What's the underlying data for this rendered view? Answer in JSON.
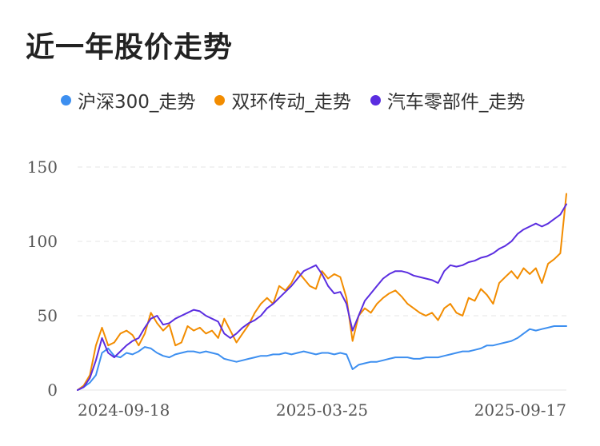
{
  "header": {
    "title": "近一年股价走势"
  },
  "legend": [
    {
      "label": "沪深300_走势",
      "color": "#3d8ff0"
    },
    {
      "label": "双环传动_走势",
      "color": "#f28c00"
    },
    {
      "label": "汽车零部件_走势",
      "color": "#5a2de0"
    }
  ],
  "chart_data": {
    "type": "line",
    "title": "近一年股价走势",
    "xlabel": "",
    "ylabel": "",
    "ylim": [
      0,
      150
    ],
    "y_ticks": [
      "0",
      "50",
      "100",
      "150"
    ],
    "x_tick_labels": [
      "2024-09-18",
      "2025-03-25",
      "2025-09-17"
    ],
    "grid": "horizontal dashed",
    "legend_position": "top",
    "series": [
      {
        "name": "沪深300_走势",
        "color": "#3d8ff0",
        "points": [
          [
            0,
            0
          ],
          [
            1,
            2
          ],
          [
            2,
            5
          ],
          [
            3,
            10
          ],
          [
            4,
            25
          ],
          [
            5,
            28
          ],
          [
            6,
            23
          ],
          [
            7,
            22
          ],
          [
            8,
            25
          ],
          [
            9,
            24
          ],
          [
            10,
            26
          ],
          [
            11,
            29
          ],
          [
            12,
            28
          ],
          [
            13,
            25
          ],
          [
            14,
            23
          ],
          [
            15,
            22
          ],
          [
            16,
            24
          ],
          [
            17,
            25
          ],
          [
            18,
            26
          ],
          [
            19,
            26
          ],
          [
            20,
            25
          ],
          [
            21,
            26
          ],
          [
            22,
            25
          ],
          [
            23,
            24
          ],
          [
            24,
            21
          ],
          [
            25,
            20
          ],
          [
            26,
            19
          ],
          [
            27,
            20
          ],
          [
            28,
            21
          ],
          [
            29,
            22
          ],
          [
            30,
            23
          ],
          [
            31,
            23
          ],
          [
            32,
            24
          ],
          [
            33,
            24
          ],
          [
            34,
            25
          ],
          [
            35,
            24
          ],
          [
            36,
            25
          ],
          [
            37,
            26
          ],
          [
            38,
            25
          ],
          [
            39,
            24
          ],
          [
            40,
            25
          ],
          [
            41,
            25
          ],
          [
            42,
            24
          ],
          [
            43,
            25
          ],
          [
            44,
            24
          ],
          [
            45,
            14
          ],
          [
            46,
            17
          ],
          [
            47,
            18
          ],
          [
            48,
            19
          ],
          [
            49,
            19
          ],
          [
            50,
            20
          ],
          [
            51,
            21
          ],
          [
            52,
            22
          ],
          [
            53,
            22
          ],
          [
            54,
            22
          ],
          [
            55,
            21
          ],
          [
            56,
            21
          ],
          [
            57,
            22
          ],
          [
            58,
            22
          ],
          [
            59,
            22
          ],
          [
            60,
            23
          ],
          [
            61,
            24
          ],
          [
            62,
            25
          ],
          [
            63,
            26
          ],
          [
            64,
            26
          ],
          [
            65,
            27
          ],
          [
            66,
            28
          ],
          [
            67,
            30
          ],
          [
            68,
            30
          ],
          [
            69,
            31
          ],
          [
            70,
            32
          ],
          [
            71,
            33
          ],
          [
            72,
            35
          ],
          [
            73,
            38
          ],
          [
            74,
            41
          ],
          [
            75,
            40
          ],
          [
            76,
            41
          ],
          [
            77,
            42
          ],
          [
            78,
            43
          ],
          [
            79,
            43
          ],
          [
            80,
            43
          ]
        ]
      },
      {
        "name": "双环传动_走势",
        "color": "#f28c00",
        "points": [
          [
            0,
            0
          ],
          [
            1,
            3
          ],
          [
            2,
            10
          ],
          [
            3,
            30
          ],
          [
            4,
            42
          ],
          [
            5,
            30
          ],
          [
            6,
            32
          ],
          [
            7,
            38
          ],
          [
            8,
            40
          ],
          [
            9,
            37
          ],
          [
            10,
            30
          ],
          [
            11,
            38
          ],
          [
            12,
            52
          ],
          [
            13,
            45
          ],
          [
            14,
            40
          ],
          [
            15,
            44
          ],
          [
            16,
            30
          ],
          [
            17,
            32
          ],
          [
            18,
            43
          ],
          [
            19,
            40
          ],
          [
            20,
            42
          ],
          [
            21,
            38
          ],
          [
            22,
            40
          ],
          [
            23,
            35
          ],
          [
            24,
            48
          ],
          [
            25,
            40
          ],
          [
            26,
            32
          ],
          [
            27,
            38
          ],
          [
            28,
            44
          ],
          [
            29,
            52
          ],
          [
            30,
            58
          ],
          [
            31,
            62
          ],
          [
            32,
            58
          ],
          [
            33,
            70
          ],
          [
            34,
            67
          ],
          [
            35,
            72
          ],
          [
            36,
            80
          ],
          [
            37,
            75
          ],
          [
            38,
            70
          ],
          [
            39,
            68
          ],
          [
            40,
            80
          ],
          [
            41,
            75
          ],
          [
            42,
            78
          ],
          [
            43,
            76
          ],
          [
            44,
            62
          ],
          [
            45,
            33
          ],
          [
            46,
            50
          ],
          [
            47,
            55
          ],
          [
            48,
            52
          ],
          [
            49,
            58
          ],
          [
            50,
            62
          ],
          [
            51,
            65
          ],
          [
            52,
            67
          ],
          [
            53,
            63
          ],
          [
            54,
            58
          ],
          [
            55,
            55
          ],
          [
            56,
            52
          ],
          [
            57,
            50
          ],
          [
            58,
            52
          ],
          [
            59,
            47
          ],
          [
            60,
            55
          ],
          [
            61,
            58
          ],
          [
            62,
            52
          ],
          [
            63,
            50
          ],
          [
            64,
            62
          ],
          [
            65,
            60
          ],
          [
            66,
            68
          ],
          [
            67,
            64
          ],
          [
            68,
            58
          ],
          [
            69,
            72
          ],
          [
            70,
            76
          ],
          [
            71,
            80
          ],
          [
            72,
            75
          ],
          [
            73,
            82
          ],
          [
            74,
            78
          ],
          [
            75,
            82
          ],
          [
            76,
            72
          ],
          [
            77,
            85
          ],
          [
            78,
            88
          ],
          [
            79,
            92
          ],
          [
            80,
            132
          ]
        ]
      },
      {
        "name": "汽车零部件_走势",
        "color": "#5a2de0",
        "points": [
          [
            0,
            0
          ],
          [
            1,
            2
          ],
          [
            2,
            8
          ],
          [
            3,
            20
          ],
          [
            4,
            35
          ],
          [
            5,
            25
          ],
          [
            6,
            22
          ],
          [
            7,
            26
          ],
          [
            8,
            30
          ],
          [
            9,
            33
          ],
          [
            10,
            35
          ],
          [
            11,
            42
          ],
          [
            12,
            48
          ],
          [
            13,
            50
          ],
          [
            14,
            44
          ],
          [
            15,
            45
          ],
          [
            16,
            48
          ],
          [
            17,
            50
          ],
          [
            18,
            52
          ],
          [
            19,
            54
          ],
          [
            20,
            53
          ],
          [
            21,
            50
          ],
          [
            22,
            48
          ],
          [
            23,
            46
          ],
          [
            24,
            38
          ],
          [
            25,
            35
          ],
          [
            26,
            38
          ],
          [
            27,
            42
          ],
          [
            28,
            45
          ],
          [
            29,
            47
          ],
          [
            30,
            50
          ],
          [
            31,
            55
          ],
          [
            32,
            58
          ],
          [
            33,
            62
          ],
          [
            34,
            66
          ],
          [
            35,
            70
          ],
          [
            36,
            75
          ],
          [
            37,
            80
          ],
          [
            38,
            82
          ],
          [
            39,
            84
          ],
          [
            40,
            78
          ],
          [
            41,
            70
          ],
          [
            42,
            65
          ],
          [
            43,
            66
          ],
          [
            44,
            58
          ],
          [
            45,
            40
          ],
          [
            46,
            50
          ],
          [
            47,
            60
          ],
          [
            48,
            65
          ],
          [
            49,
            70
          ],
          [
            50,
            75
          ],
          [
            51,
            78
          ],
          [
            52,
            80
          ],
          [
            53,
            80
          ],
          [
            54,
            79
          ],
          [
            55,
            77
          ],
          [
            56,
            76
          ],
          [
            57,
            75
          ],
          [
            58,
            74
          ],
          [
            59,
            72
          ],
          [
            60,
            80
          ],
          [
            61,
            84
          ],
          [
            62,
            83
          ],
          [
            63,
            84
          ],
          [
            64,
            86
          ],
          [
            65,
            87
          ],
          [
            66,
            89
          ],
          [
            67,
            90
          ],
          [
            68,
            92
          ],
          [
            69,
            95
          ],
          [
            70,
            97
          ],
          [
            71,
            100
          ],
          [
            72,
            105
          ],
          [
            73,
            108
          ],
          [
            74,
            110
          ],
          [
            75,
            112
          ],
          [
            76,
            110
          ],
          [
            77,
            112
          ],
          [
            78,
            115
          ],
          [
            79,
            118
          ],
          [
            80,
            125
          ]
        ]
      }
    ]
  }
}
